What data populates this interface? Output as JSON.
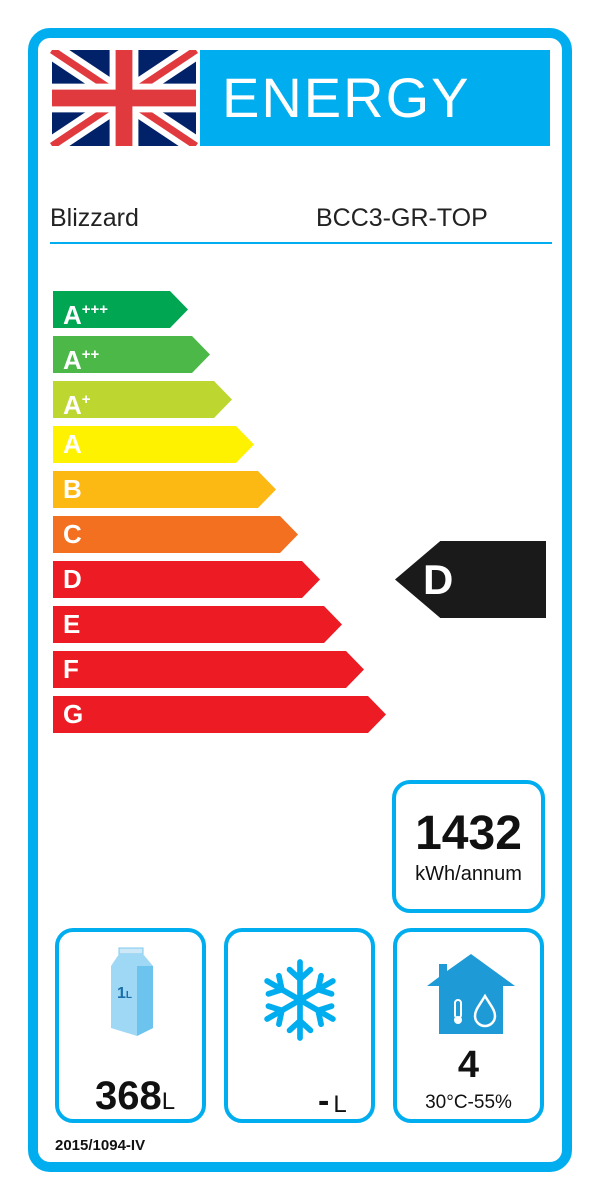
{
  "header": {
    "title": "ENERGY",
    "flag": "uk-flag-icon"
  },
  "supplier": "Blizzard",
  "model": "BCC3-GR-TOP",
  "classes": [
    {
      "letter": "A",
      "plus": "+++",
      "color": "#00a651"
    },
    {
      "letter": "A",
      "plus": "++",
      "color": "#4cb848"
    },
    {
      "letter": "A",
      "plus": "+",
      "color": "#bed630"
    },
    {
      "letter": "A",
      "plus": "",
      "color": "#fff200"
    },
    {
      "letter": "B",
      "plus": "",
      "color": "#fdb913"
    },
    {
      "letter": "C",
      "plus": "",
      "color": "#f37021"
    },
    {
      "letter": "D",
      "plus": "",
      "color": "#ed1c24"
    },
    {
      "letter": "E",
      "plus": "",
      "color": "#ed1c24"
    },
    {
      "letter": "F",
      "plus": "",
      "color": "#ed1c24"
    },
    {
      "letter": "G",
      "plus": "",
      "color": "#ed1c24"
    }
  ],
  "rating": {
    "class": "D",
    "color": "#1a1a1a"
  },
  "consumption": {
    "value": "1432",
    "unit": "kWh/annum"
  },
  "storage": {
    "value": "368",
    "unit": "L",
    "icon": "milk-carton-icon",
    "icon_text": "1L"
  },
  "frozen": {
    "value": "-",
    "unit": "L",
    "icon": "snowflake-icon"
  },
  "climate": {
    "value": "4",
    "range": "30°C-55%",
    "icon": "house-climate-icon"
  },
  "regulation": "2015/1094-IV",
  "accent": "#00aeef"
}
